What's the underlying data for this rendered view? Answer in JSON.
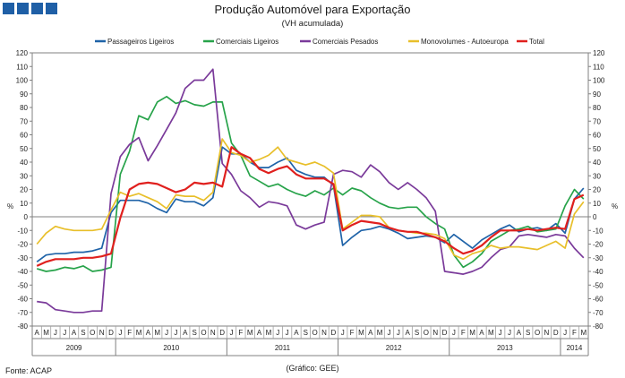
{
  "header": {
    "title": "Produção Automóvel para Exportação",
    "subtitle": "(VH acumulada)",
    "source": "Fonte: ACAP",
    "credit": "(Gráfico: GEE)"
  },
  "chart_data": {
    "type": "line",
    "title": "Produção Automóvel para Exportação",
    "subtitle": "(VH acumulada)",
    "ylabel": "%",
    "ylim": [
      -80,
      120
    ],
    "ytick_step": 10,
    "legend_position": "top",
    "month_labels": [
      "A",
      "M",
      "J",
      "J",
      "A",
      "S",
      "O",
      "N",
      "D",
      "J",
      "F",
      "M",
      "A",
      "M",
      "J",
      "J",
      "A",
      "S",
      "O",
      "N",
      "D",
      "J",
      "F",
      "M",
      "A",
      "M",
      "J",
      "J",
      "A",
      "S",
      "O",
      "N",
      "D",
      "J",
      "F",
      "M",
      "A",
      "M",
      "J",
      "J",
      "A",
      "S",
      "O",
      "N",
      "D",
      "J",
      "F",
      "M",
      "A",
      "M",
      "J",
      "J",
      "A",
      "S",
      "O",
      "N",
      "D",
      "J",
      "F",
      "M"
    ],
    "year_groups": [
      {
        "label": "2009",
        "months": 9
      },
      {
        "label": "2010",
        "months": 12
      },
      {
        "label": "2011",
        "months": 12
      },
      {
        "label": "2012",
        "months": 12
      },
      {
        "label": "2013",
        "months": 12
      },
      {
        "label": "2014",
        "months": 3
      }
    ],
    "series": [
      {
        "name": "Passageiros Ligeiros",
        "color": "#1f63a8",
        "values": [
          -33,
          -28,
          -27,
          -27,
          -26,
          -26,
          -25,
          -23,
          3,
          12,
          12,
          12,
          10,
          6,
          3,
          13,
          11,
          11,
          8,
          14,
          51,
          46,
          46,
          40,
          36,
          36,
          40,
          43,
          34,
          31,
          29,
          29,
          23,
          -21,
          -15,
          -10,
          -9,
          -7,
          -9,
          -12,
          -16,
          -15,
          -14,
          -15,
          -19,
          -13,
          -18,
          -23,
          -17,
          -13,
          -9,
          -6,
          -11,
          -9,
          -8,
          -10,
          -5,
          -12,
          13,
          21
        ]
      },
      {
        "name": "Comerciais Ligeiros",
        "color": "#27a34a",
        "values": [
          -38,
          -40,
          -39,
          -37,
          -38,
          -36,
          -40,
          -39,
          -37,
          31,
          48,
          74,
          71,
          84,
          88,
          83,
          85,
          82,
          81,
          84,
          84,
          54,
          45,
          30,
          26,
          22,
          24,
          20,
          17,
          15,
          19,
          16,
          21,
          16,
          21,
          19,
          14,
          10,
          7,
          6,
          7,
          7,
          0,
          -5,
          -9,
          -28,
          -37,
          -33,
          -27,
          -18,
          -14,
          -10,
          -9,
          -7,
          -11,
          -10,
          -9,
          8,
          20,
          13
        ]
      },
      {
        "name": "Comerciais Pesados",
        "color": "#7a3a9a",
        "values": [
          -62,
          -63,
          -68,
          -69,
          -70,
          -70,
          -69,
          -69,
          17,
          44,
          53,
          58,
          41,
          52,
          64,
          76,
          94,
          100,
          100,
          108,
          39,
          31,
          19,
          14,
          7,
          11,
          10,
          8,
          -6,
          -9,
          -6,
          -4,
          31,
          34,
          33,
          29,
          38,
          33,
          25,
          20,
          25,
          20,
          14,
          4,
          -40,
          -41,
          -42,
          -40,
          -37,
          -30,
          -24,
          -22,
          -14,
          -13,
          -14,
          -15,
          -13,
          -14,
          -23,
          -30
        ]
      },
      {
        "name": "Monovolumes - Autoeuropa",
        "color": "#e8bf2a",
        "values": [
          -20,
          -12,
          -7,
          -9,
          -10,
          -10,
          -10,
          -9,
          5,
          18,
          15,
          17,
          14,
          11,
          6,
          16,
          15,
          15,
          12,
          18,
          57,
          47,
          45,
          40,
          42,
          45,
          51,
          42,
          40,
          38,
          40,
          37,
          32,
          -9,
          -4,
          1,
          1,
          0,
          -8,
          -10,
          -11,
          -12,
          -12,
          -13,
          -16,
          -28,
          -31,
          -27,
          -25,
          -21,
          -23,
          -22,
          -22,
          -23,
          -24,
          -21,
          -18,
          -23,
          2,
          11
        ]
      },
      {
        "name": "Total",
        "color": "#e0201e",
        "values": [
          -36,
          -33,
          -31,
          -31,
          -31,
          -30,
          -30,
          -29,
          -27,
          -1,
          20,
          24,
          25,
          24,
          21,
          18,
          20,
          25,
          24,
          25,
          22,
          51,
          46,
          43,
          35,
          32,
          35,
          37,
          31,
          28,
          28,
          28,
          24,
          -10,
          -6,
          -3,
          -4,
          -5,
          -8,
          -10,
          -11,
          -11,
          -13,
          -15,
          -18,
          -23,
          -27,
          -25,
          -21,
          -15,
          -10,
          -10,
          -10,
          -9,
          -10,
          -9,
          -8,
          -9,
          13,
          16
        ]
      }
    ]
  }
}
